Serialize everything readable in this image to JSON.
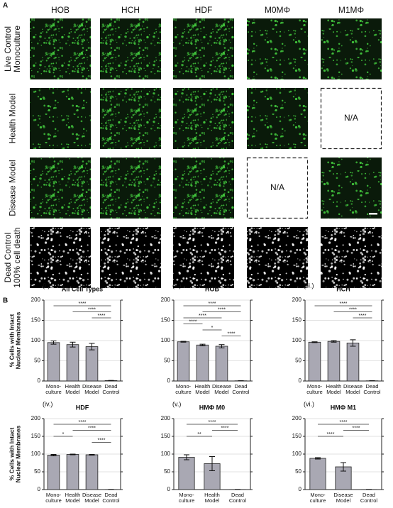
{
  "panel_a": {
    "label": "A",
    "columns": [
      "HOB",
      "HCH",
      "HDF",
      "M0MΦ",
      "M1MΦ"
    ],
    "rows": [
      "Live Control\nMonoculture",
      "Health Model",
      "Disease Model",
      "Dead Control\n100% cell death"
    ],
    "na_label": "N/A"
  },
  "panel_b": {
    "label": "B"
  },
  "chart_data": [
    {
      "type": "bar",
      "panel": "(i.)",
      "title": "All Cell Types",
      "y_label": "% Cells with Intact\nNuclear Membranes",
      "categories": [
        "Mono-\nculture",
        "Health\nModel",
        "Disease\nModel",
        "Dead\nControl"
      ],
      "values": [
        95,
        90,
        85,
        1
      ],
      "errors": [
        4,
        6,
        8,
        0.5
      ],
      "color": "#a9a8b3",
      "ylim": [
        0,
        200
      ],
      "yticks": [
        0,
        50,
        100,
        150,
        200
      ],
      "grid": true,
      "brackets": [
        {
          "from": 0,
          "to": 3,
          "label": "****"
        },
        {
          "from": 1,
          "to": 3,
          "label": "****"
        },
        {
          "from": 2,
          "to": 3,
          "label": "****"
        }
      ]
    },
    {
      "type": "bar",
      "panel": "(ii.)",
      "title": "HOB",
      "categories": [
        "Mono-\nculture",
        "Health\nModel",
        "Disease\nModel",
        "Dead\nControl"
      ],
      "values": [
        97,
        89,
        86,
        0.5
      ],
      "errors": [
        1,
        2,
        4,
        0.3
      ],
      "color": "#a9a8b3",
      "ylim": [
        0,
        200
      ],
      "yticks": [
        0,
        50,
        100,
        150,
        200
      ],
      "grid": true,
      "brackets": [
        {
          "from": 0,
          "to": 3,
          "label": "****"
        },
        {
          "from": 1,
          "to": 3,
          "label": "****"
        },
        {
          "from": 0,
          "to": 2,
          "label": "****"
        },
        {
          "from": 0,
          "to": 1,
          "label": "****"
        },
        {
          "from": 1,
          "to": 2,
          "label": "*"
        },
        {
          "from": 2,
          "to": 3,
          "label": "****"
        }
      ]
    },
    {
      "type": "bar",
      "panel": "(iii.)",
      "title": "HCH",
      "categories": [
        "Mono-\nculture",
        "Health\nModel",
        "Disease\nModel",
        "Dead\nControl"
      ],
      "values": [
        96,
        98,
        94,
        0.5
      ],
      "errors": [
        1,
        2,
        8,
        0.3
      ],
      "color": "#a9a8b3",
      "ylim": [
        0,
        200
      ],
      "yticks": [
        0,
        50,
        100,
        150,
        200
      ],
      "grid": true,
      "brackets": [
        {
          "from": 0,
          "to": 3,
          "label": "****"
        },
        {
          "from": 1,
          "to": 3,
          "label": "****"
        },
        {
          "from": 2,
          "to": 3,
          "label": "****"
        }
      ]
    },
    {
      "type": "bar",
      "panel": "(iv.)",
      "title": "HDF",
      "y_label": "% Cells with Intact\nNuclear Membranes",
      "categories": [
        "Mono-\nculture",
        "Health\nModel",
        "Disease\nModel",
        "Dead\nControl"
      ],
      "values": [
        97,
        99,
        98,
        0.3
      ],
      "errors": [
        2,
        1,
        1,
        0.2
      ],
      "color": "#a9a8b3",
      "ylim": [
        0,
        200
      ],
      "yticks": [
        0,
        50,
        100,
        150,
        200
      ],
      "grid": true,
      "brackets": [
        {
          "from": 0,
          "to": 3,
          "label": "****"
        },
        {
          "from": 1,
          "to": 3,
          "label": "****"
        },
        {
          "from": 0,
          "to": 1,
          "label": "*"
        },
        {
          "from": 2,
          "to": 3,
          "label": "****"
        }
      ]
    },
    {
      "type": "bar",
      "panel": "(v.)",
      "title": "HMΦ M0",
      "categories": [
        "Mono-\nculture",
        "Health\nModel",
        "Dead\nControl"
      ],
      "values": [
        91,
        73,
        0.3
      ],
      "errors": [
        7,
        20,
        0.2
      ],
      "color": "#a9a8b3",
      "ylim": [
        0,
        200
      ],
      "yticks": [
        0,
        50,
        100,
        150,
        200
      ],
      "grid": true,
      "brackets": [
        {
          "from": 0,
          "to": 2,
          "label": "****"
        },
        {
          "from": 1,
          "to": 2,
          "label": "****"
        },
        {
          "from": 0,
          "to": 1,
          "label": "**"
        }
      ]
    },
    {
      "type": "bar",
      "panel": "(vi.)",
      "title": "HMΦ M1",
      "categories": [
        "Mono-\nculture",
        "Disease\nModel",
        "Dead\nControl"
      ],
      "values": [
        88,
        64,
        0.3
      ],
      "errors": [
        2,
        12,
        0.2
      ],
      "color": "#a9a8b3",
      "ylim": [
        0,
        200
      ],
      "yticks": [
        0,
        50,
        100,
        150,
        200
      ],
      "grid": true,
      "brackets": [
        {
          "from": 0,
          "to": 2,
          "label": "****"
        },
        {
          "from": 1,
          "to": 2,
          "label": "****"
        },
        {
          "from": 0,
          "to": 1,
          "label": "****"
        }
      ]
    }
  ]
}
